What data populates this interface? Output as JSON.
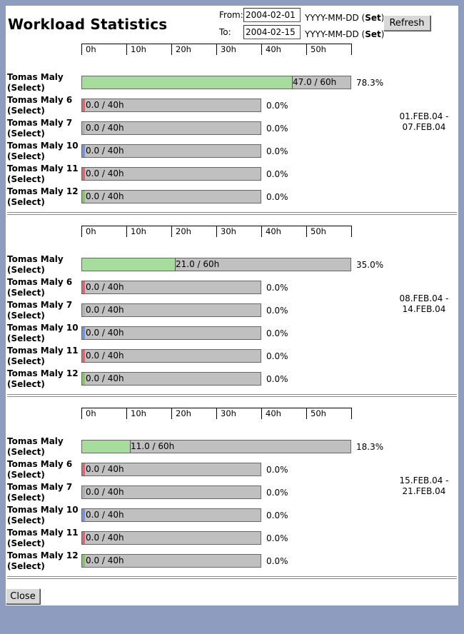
{
  "header": {
    "title": "Workload Statistics",
    "from_label": "From:",
    "from_value": "2004-02-01",
    "to_label": "To:",
    "to_value": "2004-02-15",
    "format_hint": "YYYY-MM-DD (",
    "set_label": "Set",
    "format_close": ")",
    "refresh_label": "Refresh"
  },
  "scale_ticks": [
    "0h",
    "10h",
    "20h",
    "30h",
    "40h",
    "50h"
  ],
  "select_open": "(",
  "select_label": "Select",
  "select_close": ")",
  "colors": {
    "green": "#a8dc9c",
    "red": "#d46a75",
    "gray": "#b0b0b0",
    "blue": "#7892d4",
    "olive": "#8ec06c",
    "bar_bg": "#c0c0c0"
  },
  "weeks": [
    {
      "period": "01.FEB.04 -\n07.FEB.04",
      "rows": [
        {
          "name": "Tomas Maly",
          "value_text": "47.0 / 60h",
          "percent": "78.3%",
          "hours": 47.0,
          "capacity": 60,
          "color": "green"
        },
        {
          "name": "Tomas Maly 6",
          "value_text": "0.0 / 40h",
          "percent": "0.0%",
          "hours": 0,
          "capacity": 40,
          "color": "red"
        },
        {
          "name": "Tomas Maly 7",
          "value_text": "0.0 / 40h",
          "percent": "0.0%",
          "hours": 0,
          "capacity": 40,
          "color": "gray"
        },
        {
          "name": "Tomas Maly 10",
          "value_text": "0.0 / 40h",
          "percent": "0.0%",
          "hours": 0,
          "capacity": 40,
          "color": "blue"
        },
        {
          "name": "Tomas Maly 11",
          "value_text": "0.0 / 40h",
          "percent": "0.0%",
          "hours": 0,
          "capacity": 40,
          "color": "red"
        },
        {
          "name": "Tomas Maly 12",
          "value_text": "0.0 / 40h",
          "percent": "0.0%",
          "hours": 0,
          "capacity": 40,
          "color": "olive"
        }
      ]
    },
    {
      "period": "08.FEB.04 -\n14.FEB.04",
      "rows": [
        {
          "name": "Tomas Maly",
          "value_text": "21.0 / 60h",
          "percent": "35.0%",
          "hours": 21.0,
          "capacity": 60,
          "color": "green"
        },
        {
          "name": "Tomas Maly 6",
          "value_text": "0.0 / 40h",
          "percent": "0.0%",
          "hours": 0,
          "capacity": 40,
          "color": "red"
        },
        {
          "name": "Tomas Maly 7",
          "value_text": "0.0 / 40h",
          "percent": "0.0%",
          "hours": 0,
          "capacity": 40,
          "color": "gray"
        },
        {
          "name": "Tomas Maly 10",
          "value_text": "0.0 / 40h",
          "percent": "0.0%",
          "hours": 0,
          "capacity": 40,
          "color": "blue"
        },
        {
          "name": "Tomas Maly 11",
          "value_text": "0.0 / 40h",
          "percent": "0.0%",
          "hours": 0,
          "capacity": 40,
          "color": "red"
        },
        {
          "name": "Tomas Maly 12",
          "value_text": "0.0 / 40h",
          "percent": "0.0%",
          "hours": 0,
          "capacity": 40,
          "color": "olive"
        }
      ]
    },
    {
      "period": "15.FEB.04 -\n21.FEB.04",
      "rows": [
        {
          "name": "Tomas Maly",
          "value_text": "11.0 / 60h",
          "percent": "18.3%",
          "hours": 11.0,
          "capacity": 60,
          "color": "green"
        },
        {
          "name": "Tomas Maly 6",
          "value_text": "0.0 / 40h",
          "percent": "0.0%",
          "hours": 0,
          "capacity": 40,
          "color": "red"
        },
        {
          "name": "Tomas Maly 7",
          "value_text": "0.0 / 40h",
          "percent": "0.0%",
          "hours": 0,
          "capacity": 40,
          "color": "gray"
        },
        {
          "name": "Tomas Maly 10",
          "value_text": "0.0 / 40h",
          "percent": "0.0%",
          "hours": 0,
          "capacity": 40,
          "color": "blue"
        },
        {
          "name": "Tomas Maly 11",
          "value_text": "0.0 / 40h",
          "percent": "0.0%",
          "hours": 0,
          "capacity": 40,
          "color": "red"
        },
        {
          "name": "Tomas Maly 12",
          "value_text": "0.0 / 40h",
          "percent": "0.0%",
          "hours": 0,
          "capacity": 40,
          "color": "olive"
        }
      ]
    }
  ],
  "footer": {
    "close_label": "Close"
  }
}
